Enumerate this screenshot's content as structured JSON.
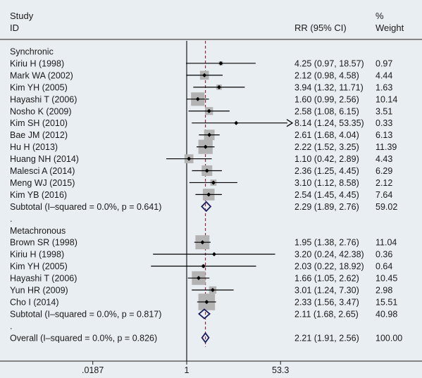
{
  "chart_data": {
    "type": "forest",
    "header": {
      "study_line1": "Study",
      "study_line2": "ID",
      "rr_label": "RR (95% CI)",
      "weight_line1": "%",
      "weight_line2": "Weight"
    },
    "x_scale": "log",
    "xlim": [
      0.0187,
      53.3
    ],
    "null_value": 1,
    "overall_line_value": 2.21,
    "tick_labels": [
      {
        "value": 0.0187,
        "label": ".0187"
      },
      {
        "value": 1,
        "label": "1"
      },
      {
        "value": 53.3,
        "label": "53.3"
      }
    ],
    "rows": [
      {
        "kind": "group",
        "label": "Synchronic"
      },
      {
        "kind": "study",
        "label": "Kiriu H (1998)",
        "rr": 4.25,
        "lo": 0.97,
        "hi": 18.57,
        "ci_text": "4.25 (0.97, 18.57)",
        "weight": 0.97,
        "weight_text": "0.97"
      },
      {
        "kind": "study",
        "label": "Mark WA (2002)",
        "rr": 2.12,
        "lo": 0.98,
        "hi": 4.58,
        "ci_text": "2.12 (0.98, 4.58)",
        "weight": 4.44,
        "weight_text": "4.44"
      },
      {
        "kind": "study",
        "label": "Kim YH (2005)",
        "rr": 3.94,
        "lo": 1.32,
        "hi": 11.71,
        "ci_text": "3.94 (1.32, 11.71)",
        "weight": 1.63,
        "weight_text": "1.63"
      },
      {
        "kind": "study",
        "label": "Hayashi T (2006)",
        "rr": 1.6,
        "lo": 0.99,
        "hi": 2.56,
        "ci_text": "1.60 (0.99, 2.56)",
        "weight": 10.14,
        "weight_text": "10.14"
      },
      {
        "kind": "study",
        "label": "Nosho K (2009)",
        "rr": 2.58,
        "lo": 1.08,
        "hi": 6.15,
        "ci_text": "2.58 (1.08, 6.15)",
        "weight": 3.51,
        "weight_text": "3.51"
      },
      {
        "kind": "study",
        "label": "Kim SH (2010)",
        "rr": 8.14,
        "lo": 1.24,
        "hi": 53.35,
        "ci_text": "8.14 (1.24, 53.35)",
        "weight": 0.33,
        "weight_text": "0.33",
        "arrow_right": true
      },
      {
        "kind": "study",
        "label": "Bae JM (2012)",
        "rr": 2.61,
        "lo": 1.68,
        "hi": 4.04,
        "ci_text": "2.61 (1.68, 4.04)",
        "weight": 6.13,
        "weight_text": "6.13"
      },
      {
        "kind": "study",
        "label": "Hu H (2013)",
        "rr": 2.22,
        "lo": 1.52,
        "hi": 3.25,
        "ci_text": "2.22 (1.52, 3.25)",
        "weight": 11.39,
        "weight_text": "11.39"
      },
      {
        "kind": "study",
        "label": "Huang NH (2014)",
        "rr": 1.1,
        "lo": 0.42,
        "hi": 2.89,
        "ci_text": "1.10 (0.42, 2.89)",
        "weight": 4.43,
        "weight_text": "4.43"
      },
      {
        "kind": "study",
        "label": "Malesci A (2014)",
        "rr": 2.36,
        "lo": 1.25,
        "hi": 4.45,
        "ci_text": "2.36 (1.25, 4.45)",
        "weight": 6.29,
        "weight_text": "6.29"
      },
      {
        "kind": "study",
        "label": "Meng WJ (2015)",
        "rr": 3.1,
        "lo": 1.12,
        "hi": 8.58,
        "ci_text": "3.10 (1.12, 8.58)",
        "weight": 2.12,
        "weight_text": "2.12"
      },
      {
        "kind": "study",
        "label": "Kim YB (2016)",
        "rr": 2.54,
        "lo": 1.45,
        "hi": 4.45,
        "ci_text": "2.54 (1.45, 4.45)",
        "weight": 7.64,
        "weight_text": "7.64"
      },
      {
        "kind": "subtotal",
        "label": "Subtotal  (I–squared = 0.0%, p = 0.641)",
        "rr": 2.29,
        "lo": 1.89,
        "hi": 2.76,
        "ci_text": "2.29 (1.89, 2.76)",
        "weight": 59.02,
        "weight_text": "59.02"
      },
      {
        "kind": "spacer",
        "label": "."
      },
      {
        "kind": "group",
        "label": "Metachronous"
      },
      {
        "kind": "study",
        "label": "Brown SR (1998)",
        "rr": 1.95,
        "lo": 1.38,
        "hi": 2.76,
        "ci_text": "1.95 (1.38, 2.76)",
        "weight": 11.04,
        "weight_text": "11.04"
      },
      {
        "kind": "study",
        "label": "Kiriu H (1998)",
        "rr": 3.2,
        "lo": 0.24,
        "hi": 42.38,
        "ci_text": "3.20 (0.24, 42.38)",
        "weight": 0.36,
        "weight_text": "0.36"
      },
      {
        "kind": "study",
        "label": "Kim YH (2005)",
        "rr": 2.03,
        "lo": 0.22,
        "hi": 18.92,
        "ci_text": "2.03 (0.22, 18.92)",
        "weight": 0.64,
        "weight_text": "0.64"
      },
      {
        "kind": "study",
        "label": "Hayashi T (2006)",
        "rr": 1.66,
        "lo": 1.05,
        "hi": 2.62,
        "ci_text": "1.66 (1.05, 2.62)",
        "weight": 10.45,
        "weight_text": "10.45"
      },
      {
        "kind": "study",
        "label": "Yun HR (2009)",
        "rr": 3.01,
        "lo": 1.24,
        "hi": 7.3,
        "ci_text": "3.01 (1.24, 7.30)",
        "weight": 2.98,
        "weight_text": "2.98"
      },
      {
        "kind": "study",
        "label": "Cho I (2014)",
        "rr": 2.33,
        "lo": 1.56,
        "hi": 3.47,
        "ci_text": "2.33 (1.56, 3.47)",
        "weight": 15.51,
        "weight_text": "15.51"
      },
      {
        "kind": "subtotal",
        "label": "Subtotal  (I–squared = 0.0%, p = 0.817)",
        "rr": 2.11,
        "lo": 1.68,
        "hi": 2.65,
        "ci_text": "2.11 (1.68, 2.65)",
        "weight": 40.98,
        "weight_text": "40.98"
      },
      {
        "kind": "spacer",
        "label": "."
      },
      {
        "kind": "overall",
        "label": "Overall  (I–squared = 0.0%, p = 0.826)",
        "rr": 2.21,
        "lo": 1.91,
        "hi": 2.56,
        "ci_text": "2.21 (1.91, 2.56)",
        "weight": 100.0,
        "weight_text": "100.00"
      }
    ],
    "colors": {
      "background": "#e9eef3",
      "box": "#b3b3b3",
      "diamond": "#1c1f5e",
      "dashed_line": "#8b2a3a",
      "axis": "#1a1a1a"
    }
  }
}
